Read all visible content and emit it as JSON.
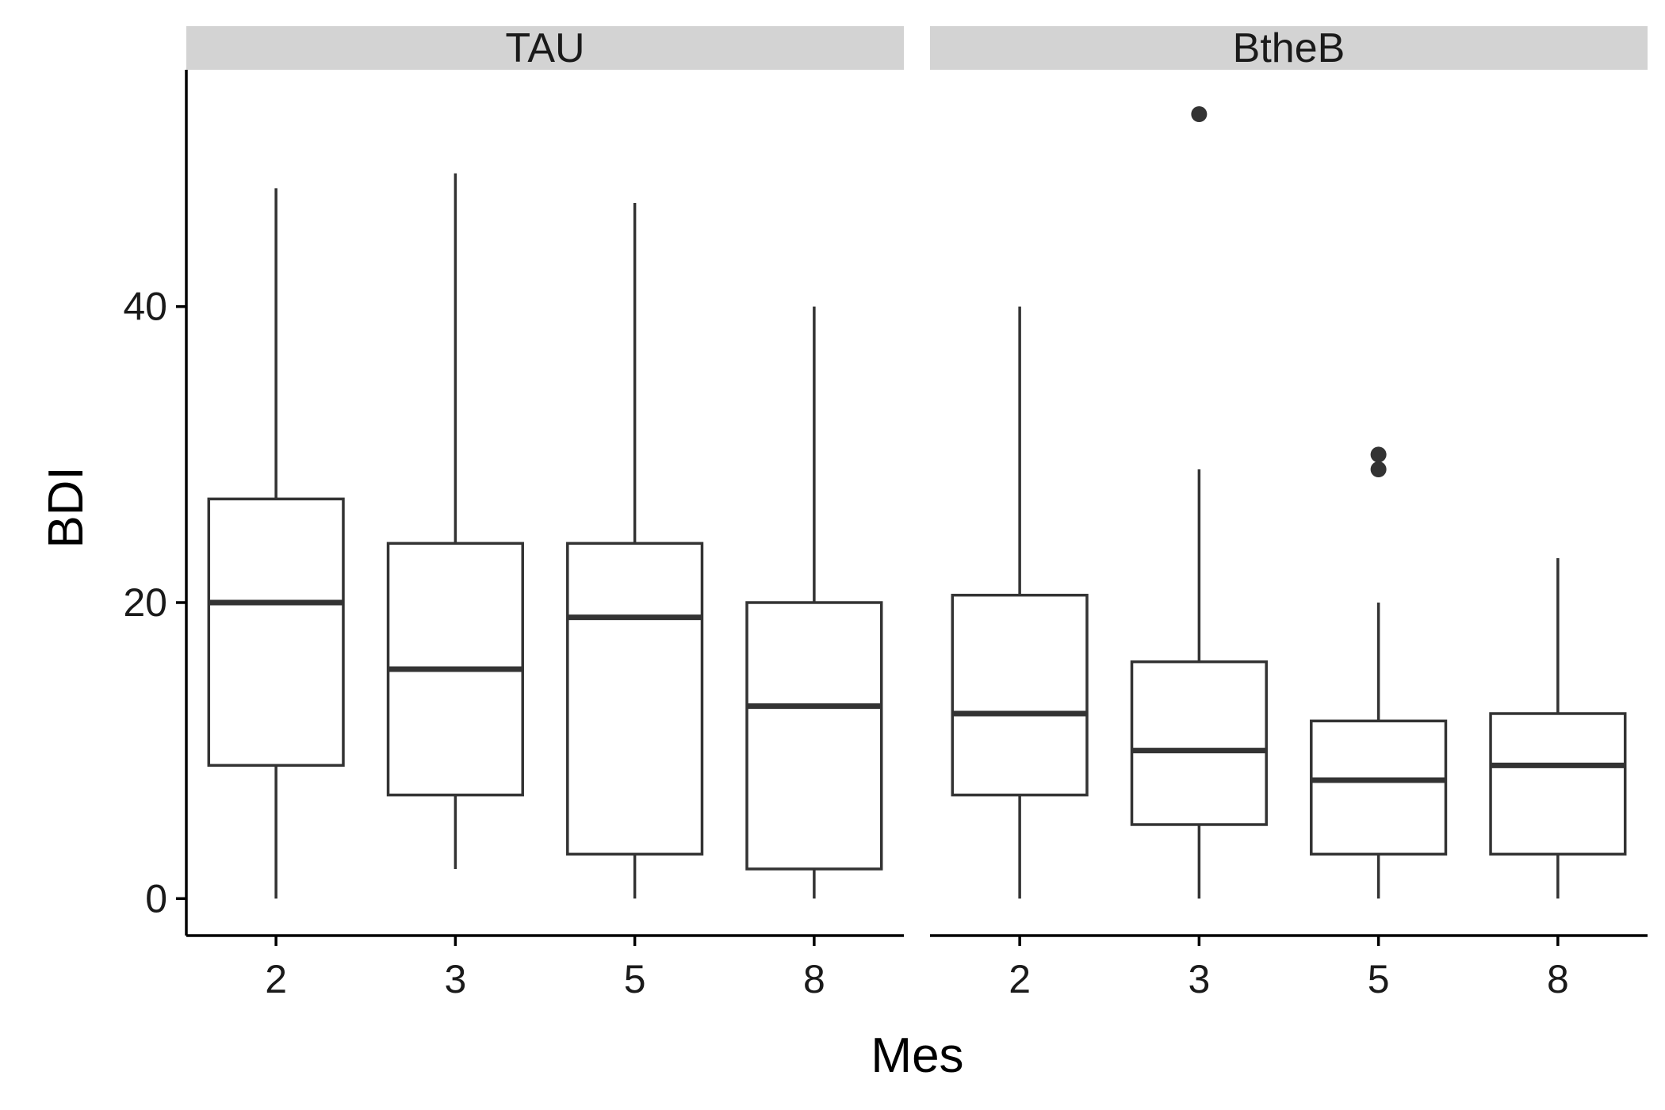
{
  "chart_data": {
    "type": "boxplot",
    "xlabel": "Mes",
    "ylabel": "BDI",
    "ylim": [
      -2.5,
      56
    ],
    "yticks": [
      0,
      20,
      40
    ],
    "grid": false,
    "legend": "none",
    "colors": {
      "box_line": "#333333",
      "box_fill": "#ffffff",
      "strip_fill": "#d3d3d3",
      "axis": "#000000"
    },
    "categories": [
      "2",
      "3",
      "5",
      "8"
    ],
    "panels": [
      {
        "name": "TAU",
        "boxes": [
          {
            "x": "2",
            "min": 0,
            "q1": 9,
            "median": 20,
            "q3": 27,
            "max": 48,
            "outliers": []
          },
          {
            "x": "3",
            "min": 2,
            "q1": 7,
            "median": 15.5,
            "q3": 24,
            "max": 49,
            "outliers": []
          },
          {
            "x": "5",
            "min": 0,
            "q1": 3,
            "median": 19,
            "q3": 24,
            "max": 47,
            "outliers": []
          },
          {
            "x": "8",
            "min": 0,
            "q1": 2,
            "median": 13,
            "q3": 20,
            "max": 40,
            "outliers": []
          }
        ]
      },
      {
        "name": "BtheB",
        "boxes": [
          {
            "x": "2",
            "min": 0,
            "q1": 7,
            "median": 12.5,
            "q3": 20.5,
            "max": 40,
            "outliers": []
          },
          {
            "x": "3",
            "min": 0,
            "q1": 5,
            "median": 10,
            "q3": 16,
            "max": 29,
            "outliers": [
              53
            ]
          },
          {
            "x": "5",
            "min": 0,
            "q1": 3,
            "median": 8,
            "q3": 12,
            "max": 20,
            "outliers": [
              29,
              30
            ]
          },
          {
            "x": "8",
            "min": 0,
            "q1": 3,
            "median": 9,
            "q3": 12.5,
            "max": 23,
            "outliers": []
          }
        ]
      }
    ]
  }
}
